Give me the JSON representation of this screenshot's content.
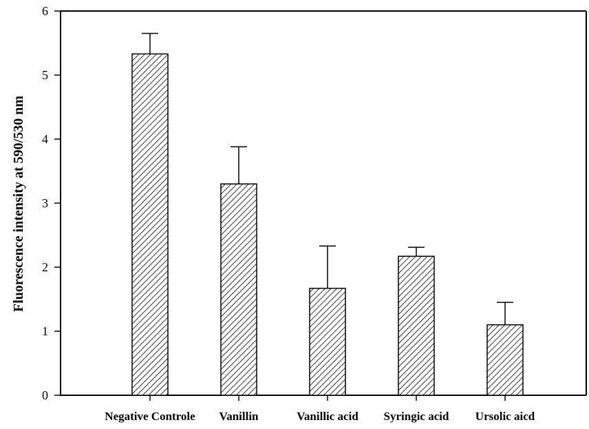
{
  "chart_data": {
    "type": "bar",
    "title": "",
    "xlabel": "",
    "ylabel": "Fluorescence intensity at 590/530 nm",
    "categories": [
      "Negative Controle",
      "Vanillin",
      "Vanillic acid",
      "Syringic acid",
      "Ursolic aicd"
    ],
    "values": [
      5.33,
      3.3,
      1.67,
      2.17,
      1.1
    ],
    "error_upper": [
      0.32,
      0.58,
      0.66,
      0.14,
      0.35
    ],
    "ylim": [
      0,
      6
    ],
    "yticks": [
      "0",
      "1",
      "2",
      "3",
      "4",
      "5",
      "6"
    ],
    "grid": false,
    "bar_fill": "hatched",
    "colors": {
      "bar_stroke": "#000000",
      "hatch": "#000000",
      "background": "#ffffff"
    }
  }
}
